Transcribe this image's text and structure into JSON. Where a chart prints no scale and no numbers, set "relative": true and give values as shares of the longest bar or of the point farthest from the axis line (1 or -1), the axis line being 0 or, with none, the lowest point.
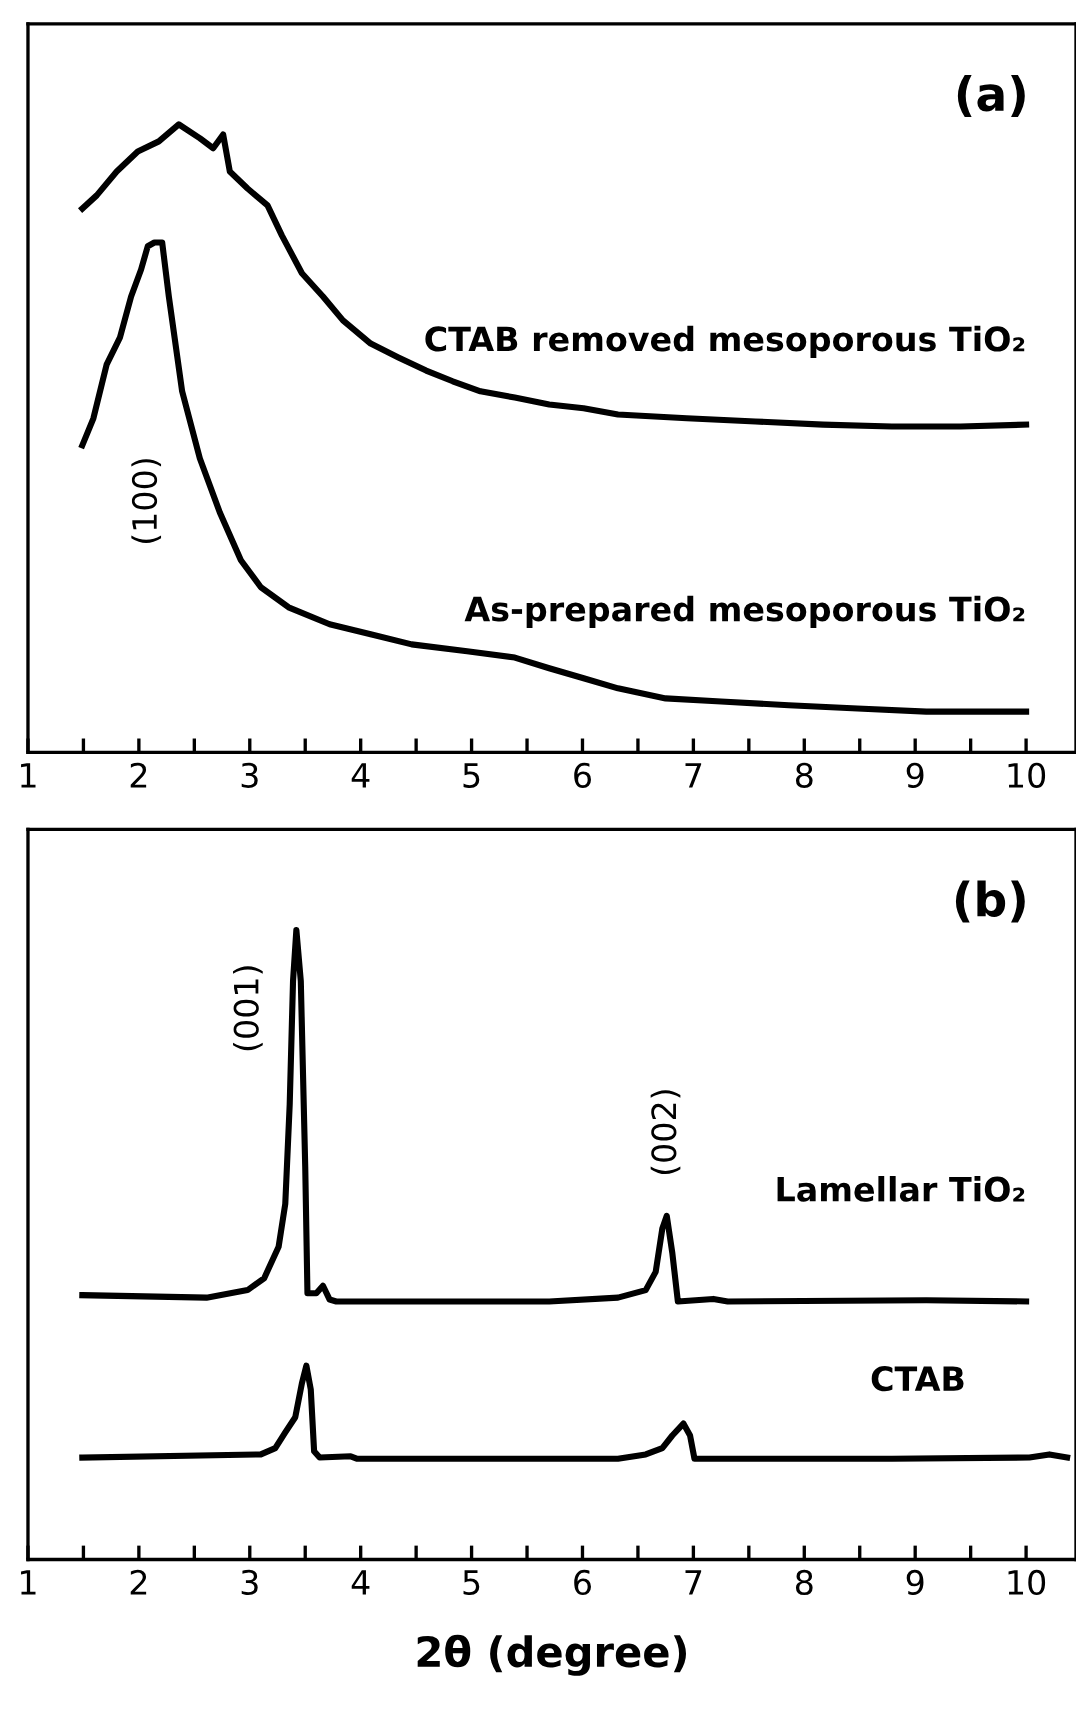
{
  "chart_data": [
    {
      "type": "line",
      "title": "(a)",
      "relative": true,
      "xlim": [
        1,
        10.45
      ],
      "xticks": [
        1,
        {
          "value": 1.5,
          "label": null
        },
        2,
        {
          "value": 2.5,
          "label": null
        },
        3,
        {
          "value": 3.5,
          "label": null
        },
        4,
        {
          "value": 4.5,
          "label": null
        },
        5,
        {
          "value": 5.5,
          "label": null
        },
        6,
        {
          "value": 6.5,
          "label": null
        },
        7,
        {
          "value": 7.5,
          "label": null
        },
        8,
        {
          "value": 8.5,
          "label": null
        },
        9,
        {
          "value": 9.5,
          "label": null
        },
        10
      ],
      "legend": false,
      "grid": false,
      "annotations": [
        "(100)"
      ],
      "series": [
        {
          "name": "CTAB removed mesoporous TiO₂",
          "color": "#000000",
          "x": [
            1.49,
            1.62,
            1.8,
            1.99,
            2.18,
            2.36,
            2.55,
            2.67,
            2.76,
            2.82,
            2.98,
            3.16,
            3.29,
            3.47,
            3.66,
            3.84,
            4.09,
            4.34,
            4.59,
            4.83,
            5.08,
            5.39,
            5.7,
            6.01,
            6.32,
            6.94,
            7.56,
            8.17,
            8.79,
            9.41,
            10
          ],
          "values": [
            0.866,
            0.887,
            0.925,
            0.957,
            0.973,
            1.0,
            0.978,
            0.962,
            0.984,
            0.925,
            0.898,
            0.871,
            0.823,
            0.763,
            0.726,
            0.688,
            0.651,
            0.629,
            0.608,
            0.591,
            0.575,
            0.565,
            0.554,
            0.548,
            0.538,
            0.532,
            0.527,
            0.522,
            0.519,
            0.519,
            0.522
          ]
        },
        {
          "name": "As-prepared mesoporous TiO₂",
          "color": "#000000",
          "x": [
            1.49,
            1.59,
            1.71,
            1.83,
            1.93,
            2.02,
            2.08,
            2.14,
            2.21,
            2.27,
            2.39,
            2.55,
            2.73,
            2.92,
            3.1,
            3.35,
            3.72,
            4.09,
            4.46,
            4.96,
            5.39,
            5.7,
            6.01,
            6.32,
            6.75,
            7.25,
            7.86,
            8.48,
            9.1,
            10
          ],
          "values": [
            0.489,
            0.532,
            0.618,
            0.661,
            0.726,
            0.769,
            0.806,
            0.812,
            0.812,
            0.726,
            0.575,
            0.468,
            0.382,
            0.306,
            0.263,
            0.231,
            0.204,
            0.188,
            0.172,
            0.161,
            0.151,
            0.134,
            0.118,
            0.102,
            0.086,
            0.081,
            0.075,
            0.07,
            0.065,
            0.065
          ]
        }
      ]
    },
    {
      "type": "line",
      "title": "(b)",
      "relative": true,
      "xlabel": "2θ (degree)",
      "xlim": [
        1,
        10.45
      ],
      "xticks": [
        1,
        {
          "value": 1.5,
          "label": null
        },
        2,
        {
          "value": 2.5,
          "label": null
        },
        3,
        {
          "value": 3.5,
          "label": null
        },
        4,
        {
          "value": 4.5,
          "label": null
        },
        5,
        {
          "value": 5.5,
          "label": null
        },
        6,
        {
          "value": 6.5,
          "label": null
        },
        7,
        {
          "value": 7.5,
          "label": null
        },
        8,
        {
          "value": 8.5,
          "label": null
        },
        9,
        {
          "value": 9.5,
          "label": null
        },
        10
      ],
      "legend": false,
      "grid": false,
      "annotations": [
        {
          "text": "(001)",
          "x": 3.42,
          "y": 1.0
        },
        {
          "text": "(002)",
          "x": 6.76,
          "y": 0.546
        }
      ],
      "series": [
        {
          "name": "Lamellar TiO₂",
          "color": "#000000",
          "x": [
            1.49,
            2.61,
            2.98,
            3.13,
            3.26,
            3.32,
            3.36,
            3.39,
            3.42,
            3.46,
            3.5,
            3.52,
            3.6,
            3.66,
            3.72,
            3.78,
            5.7,
            6.32,
            6.57,
            6.66,
            6.72,
            6.76,
            6.81,
            6.86,
            7.18,
            7.31,
            9.1,
            10
          ],
          "values": [
            0.42,
            0.416,
            0.428,
            0.447,
            0.497,
            0.565,
            0.723,
            0.919,
            1.0,
            0.919,
            0.624,
            0.423,
            0.423,
            0.435,
            0.413,
            0.41,
            0.41,
            0.416,
            0.428,
            0.457,
            0.526,
            0.546,
            0.487,
            0.41,
            0.414,
            0.41,
            0.412,
            0.41
          ]
        },
        {
          "name": "CTAB",
          "color": "#000000",
          "x": [
            1.49,
            3.1,
            3.23,
            3.32,
            3.41,
            3.47,
            3.51,
            3.55,
            3.58,
            3.63,
            3.91,
            3.97,
            6.32,
            6.57,
            6.72,
            6.81,
            6.91,
            6.97,
            7.01,
            8.79,
            10.03,
            10.21,
            10.37
          ],
          "values": [
            0.162,
            0.167,
            0.177,
            0.202,
            0.226,
            0.28,
            0.308,
            0.27,
            0.172,
            0.162,
            0.164,
            0.16,
            0.16,
            0.167,
            0.177,
            0.197,
            0.216,
            0.197,
            0.16,
            0.16,
            0.162,
            0.167,
            0.162
          ]
        }
      ]
    }
  ]
}
